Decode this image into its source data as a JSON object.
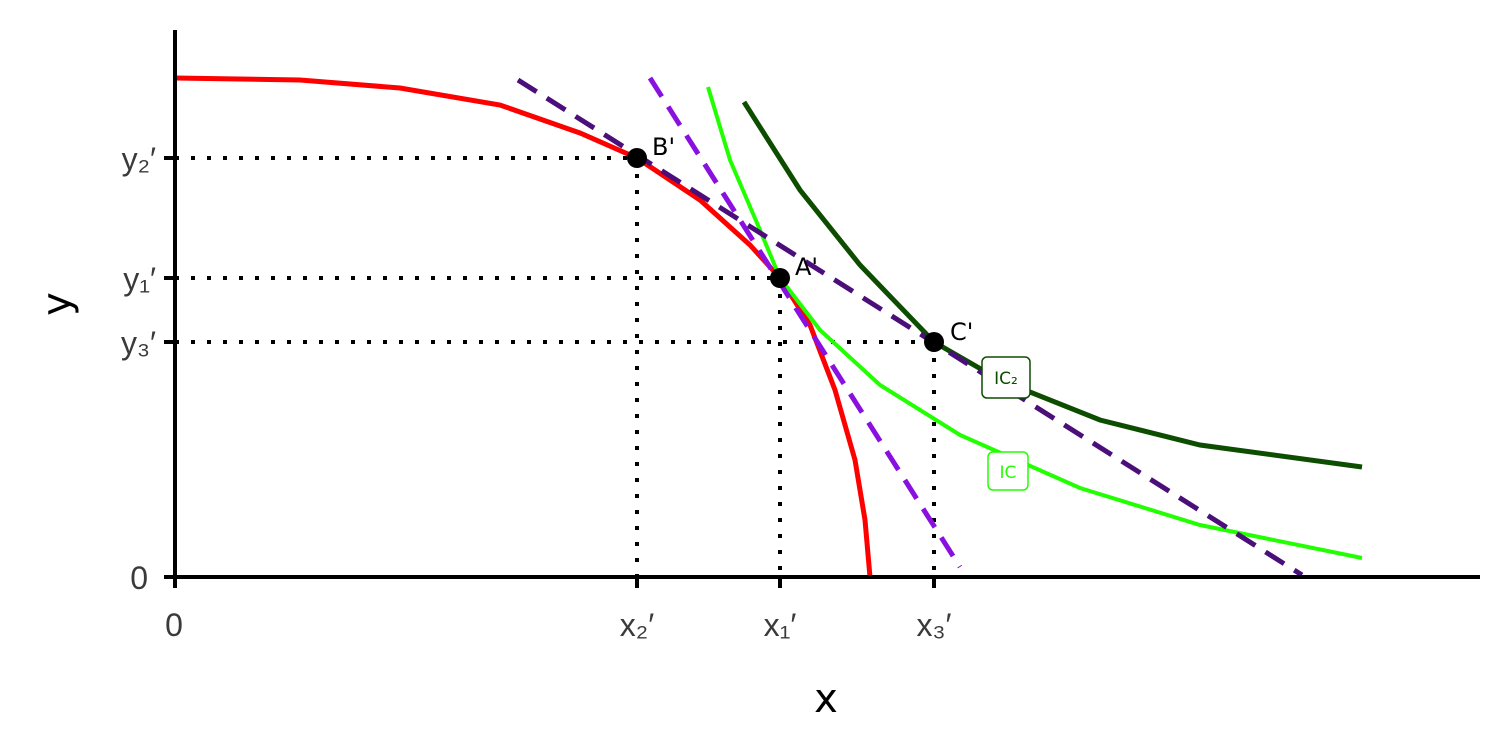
{
  "axes": {
    "x_label": "x",
    "y_label": "y",
    "x_origin": "0",
    "y_origin": "0"
  },
  "x_ticks": [
    "x₂′",
    "x₁′",
    "x₃′"
  ],
  "y_ticks": [
    "y₂′",
    "y₁′",
    "y₃′"
  ],
  "points": [
    "B'",
    "A'",
    "C'"
  ],
  "curve_labels": [
    "IC",
    "IC₂"
  ]
}
